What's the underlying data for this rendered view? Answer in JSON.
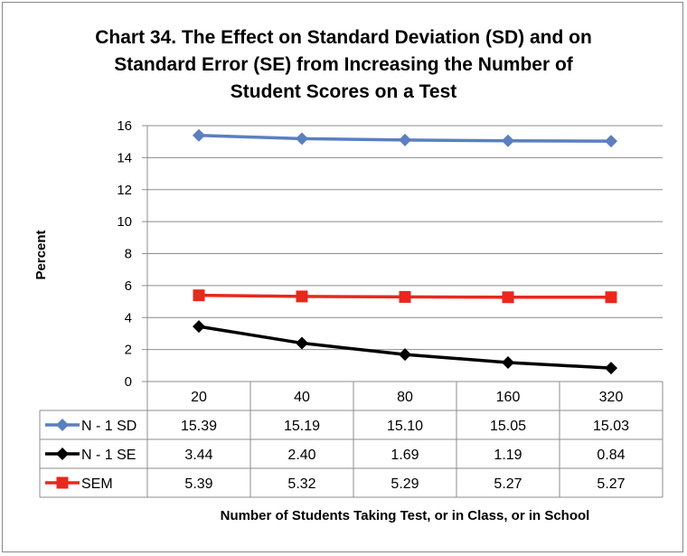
{
  "chart_data": {
    "type": "line",
    "title_lines": [
      "Chart 34. The Effect on Standard Deviation (SD) and on",
      "Standard Error (SE) from Increasing the Number of",
      "Student Scores on a Test"
    ],
    "xlabel": "Number of Students Taking Test, or in Class, or in School",
    "ylabel": "Percent",
    "ylim": [
      0,
      16
    ],
    "yticks": [
      0,
      2,
      4,
      6,
      8,
      10,
      12,
      14,
      16
    ],
    "categories": [
      "20",
      "40",
      "80",
      "160",
      "320"
    ],
    "grid": true,
    "legend_placement": "data-table-left",
    "series": [
      {
        "name": "N - 1 SD",
        "color": "#5b7fc0",
        "marker": "diamond",
        "values": [
          15.39,
          15.19,
          15.1,
          15.05,
          15.03
        ],
        "labels": [
          "15.39",
          "15.19",
          "15.10",
          "15.05",
          "15.03"
        ]
      },
      {
        "name": "N - 1 SE",
        "color": "#000000",
        "marker": "diamond",
        "values": [
          3.44,
          2.4,
          1.69,
          1.19,
          0.84
        ],
        "labels": [
          "3.44",
          "2.40",
          "1.69",
          "1.19",
          "0.84"
        ]
      },
      {
        "name": "SEM",
        "color": "#e8281c",
        "marker": "square",
        "values": [
          5.39,
          5.32,
          5.29,
          5.27,
          5.27
        ],
        "labels": [
          "5.39",
          "5.32",
          "5.29",
          "5.27",
          "5.27"
        ]
      }
    ]
  }
}
